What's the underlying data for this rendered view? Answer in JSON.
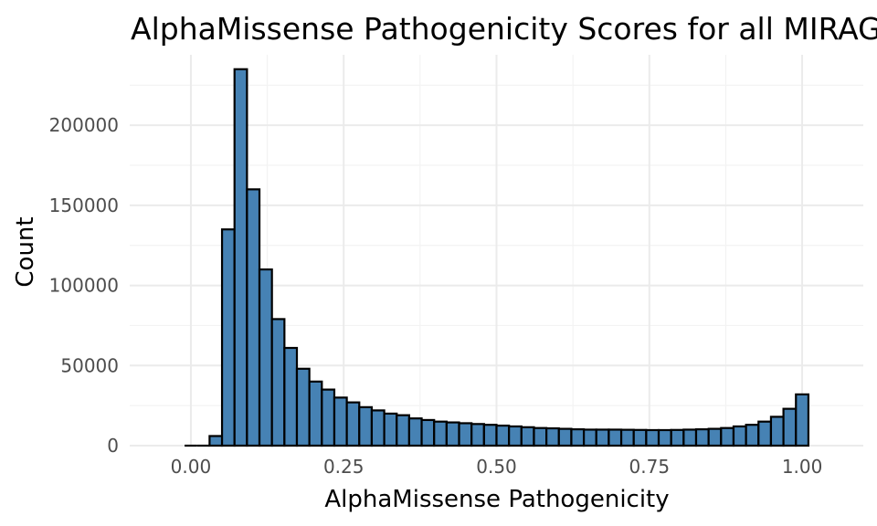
{
  "chart_data": {
    "type": "bar",
    "title": "AlphaMissense Pathogenicity Scores for all MIRAGE",
    "xlabel": "AlphaMissense Pathogenicity",
    "ylabel": "Count",
    "xlim": [
      -0.1,
      1.1
    ],
    "ylim": [
      0,
      244000
    ],
    "x_ticks": [
      "0.00",
      "0.25",
      "0.50",
      "0.75",
      "1.00"
    ],
    "x_tick_values": [
      0,
      0.25,
      0.5,
      0.75,
      1.0
    ],
    "y_ticks": [
      "0",
      "50000",
      "100000",
      "150000",
      "200000"
    ],
    "y_tick_values": [
      0,
      50000,
      100000,
      150000,
      200000
    ],
    "grid": true,
    "fill_color": "#4682b4",
    "outline_color": "#000000",
    "bin_centers": [
      0.0,
      0.02041,
      0.04082,
      0.06122,
      0.08163,
      0.10204,
      0.12245,
      0.14286,
      0.16327,
      0.18367,
      0.20408,
      0.22449,
      0.2449,
      0.26531,
      0.28571,
      0.30612,
      0.32653,
      0.34694,
      0.36735,
      0.38776,
      0.40816,
      0.42857,
      0.44898,
      0.46939,
      0.4898,
      0.5102,
      0.53061,
      0.55102,
      0.57143,
      0.59184,
      0.61224,
      0.63265,
      0.65306,
      0.67347,
      0.69388,
      0.71429,
      0.73469,
      0.7551,
      0.77551,
      0.79592,
      0.81633,
      0.83673,
      0.85714,
      0.87755,
      0.89796,
      0.91837,
      0.93878,
      0.95918,
      0.97959,
      1.0
    ],
    "values": [
      0,
      0,
      6000,
      135000,
      235000,
      160000,
      110000,
      79000,
      61000,
      48000,
      40000,
      35000,
      30000,
      27000,
      24000,
      22000,
      20000,
      19000,
      17000,
      16000,
      15000,
      14500,
      14000,
      13500,
      13000,
      12500,
      12000,
      11500,
      11000,
      10800,
      10500,
      10200,
      10000,
      10000,
      10000,
      9900,
      9800,
      9700,
      9700,
      9800,
      10000,
      10200,
      10500,
      11000,
      12000,
      13000,
      15000,
      18000,
      23000,
      32000
    ]
  }
}
